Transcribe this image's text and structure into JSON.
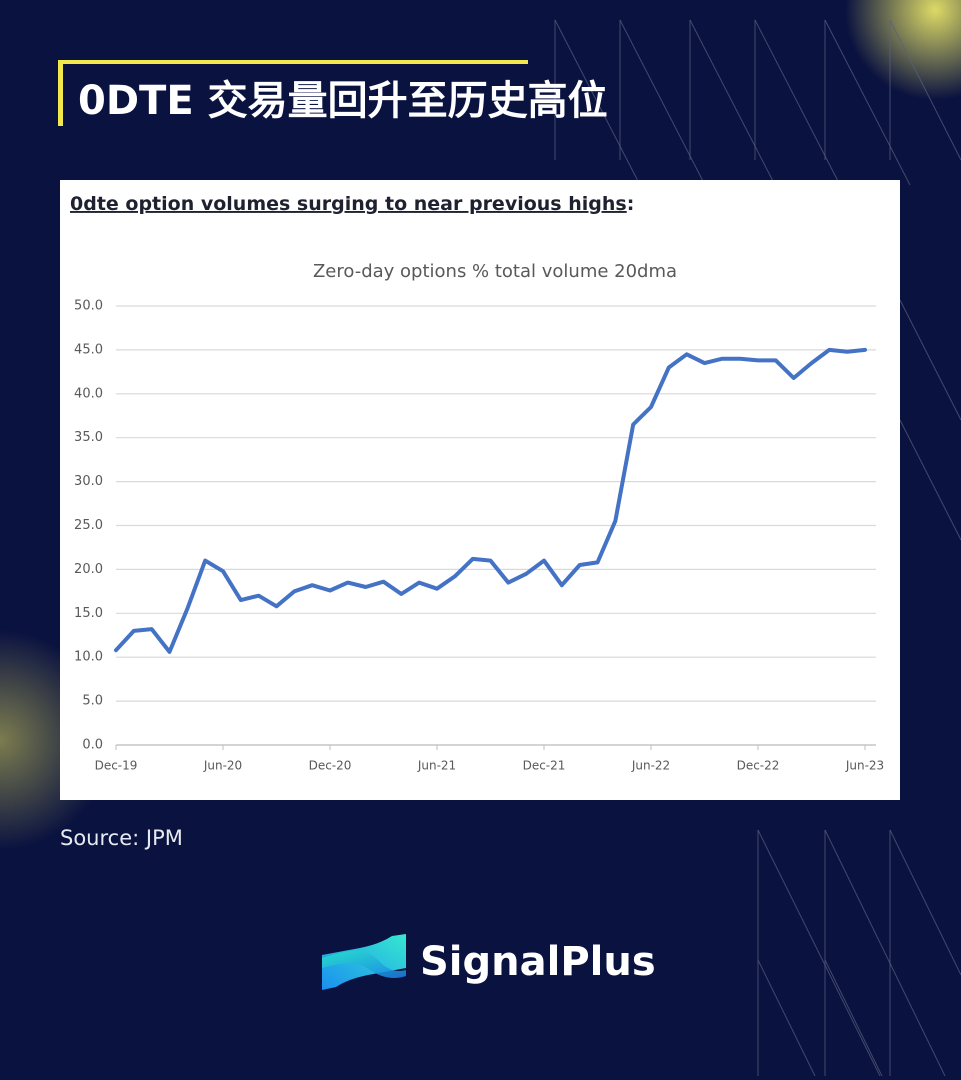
{
  "header": {
    "title": "0DTE 交易量回升至历史高位"
  },
  "chart_heading": {
    "text": "0dte option volumes surging to near previous highs",
    "punct": ":"
  },
  "chart_data": {
    "type": "line",
    "title": "Zero-day options % total volume 20dma",
    "x": [
      "2019-12",
      "2020-01",
      "2020-02",
      "2020-03",
      "2020-04",
      "2020-05",
      "2020-06",
      "2020-07",
      "2020-08",
      "2020-09",
      "2020-10",
      "2020-11",
      "2020-12",
      "2021-01",
      "2021-02",
      "2021-03",
      "2021-04",
      "2021-05",
      "2021-06",
      "2021-07",
      "2021-08",
      "2021-09",
      "2021-10",
      "2021-11",
      "2021-12",
      "2022-01",
      "2022-02",
      "2022-03",
      "2022-04",
      "2022-05",
      "2022-06",
      "2022-07",
      "2022-08",
      "2022-09",
      "2022-10",
      "2022-11",
      "2022-12",
      "2023-01",
      "2023-02",
      "2023-03",
      "2023-04",
      "2023-05",
      "2023-06"
    ],
    "series": [
      {
        "name": "Zero-day options % total volume 20dma",
        "color": "#4472c4",
        "values": [
          10.8,
          13.0,
          13.2,
          10.6,
          15.5,
          21.0,
          19.8,
          16.5,
          17.0,
          15.8,
          17.5,
          18.2,
          17.6,
          18.5,
          18.0,
          18.6,
          17.2,
          18.5,
          17.8,
          19.2,
          21.2,
          21.0,
          18.5,
          19.5,
          21.0,
          18.2,
          20.5,
          20.8,
          25.5,
          36.5,
          38.5,
          43.0,
          44.5,
          43.5,
          44.0,
          44.0,
          43.8,
          43.8,
          41.8,
          43.5,
          45.0,
          44.8,
          45.0
        ]
      }
    ],
    "ylim": [
      0,
      50
    ],
    "yticks": [
      {
        "value": 0,
        "label": "0.0"
      },
      {
        "value": 5,
        "label": "5.0"
      },
      {
        "value": 10,
        "label": "10.0"
      },
      {
        "value": 15,
        "label": "15.0"
      },
      {
        "value": 20,
        "label": "20.0"
      },
      {
        "value": 25,
        "label": "25.0"
      },
      {
        "value": 30,
        "label": "30.0"
      },
      {
        "value": 35,
        "label": "35.0"
      },
      {
        "value": 40,
        "label": "40.0"
      },
      {
        "value": 45,
        "label": "45.0"
      },
      {
        "value": 50,
        "label": "50.0"
      }
    ],
    "xlim": [
      "2019-12",
      "2023-06"
    ],
    "xticks": [
      {
        "value": "2019-12",
        "label": "Dec-19"
      },
      {
        "value": "2020-06",
        "label": "Jun-20"
      },
      {
        "value": "2020-12",
        "label": "Dec-20"
      },
      {
        "value": "2021-06",
        "label": "Jun-21"
      },
      {
        "value": "2021-12",
        "label": "Dec-21"
      },
      {
        "value": "2022-06",
        "label": "Jun-22"
      },
      {
        "value": "2022-12",
        "label": "Dec-22"
      },
      {
        "value": "2023-06",
        "label": "Jun-23"
      }
    ],
    "grid": true
  },
  "source": "Source: JPM",
  "brand": "SignalPlus"
}
